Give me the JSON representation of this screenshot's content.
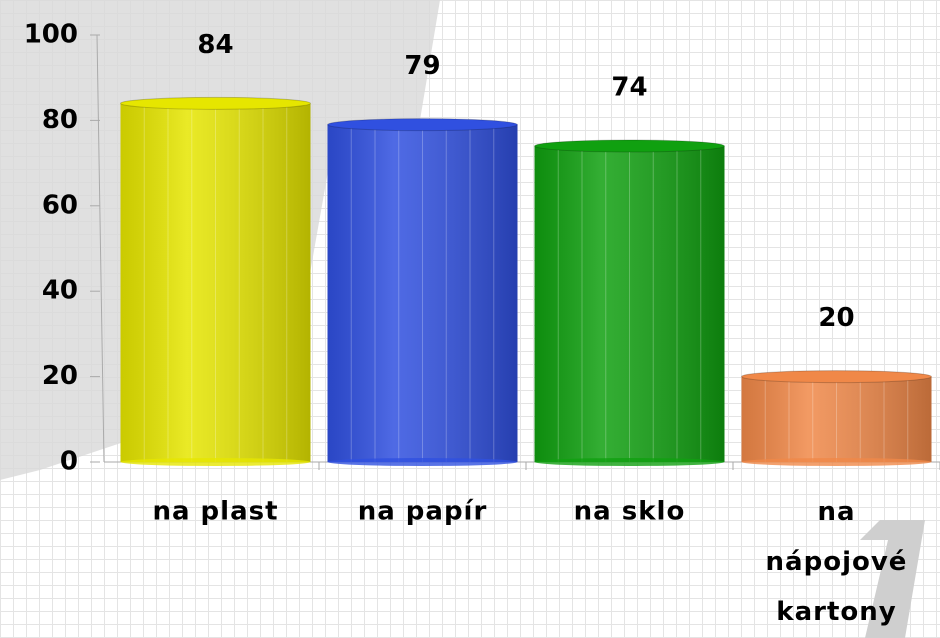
{
  "chart_data": {
    "type": "bar",
    "categories": [
      "na plast",
      "na papír",
      "na sklo",
      "na nápojové kartony"
    ],
    "values": [
      84,
      79,
      74,
      20
    ],
    "colors": [
      "#e6e600",
      "#3050e0",
      "#10a010",
      "#f08848"
    ],
    "ylim": [
      0,
      100
    ],
    "yticks": [
      0,
      20,
      40,
      60,
      80,
      100
    ]
  }
}
